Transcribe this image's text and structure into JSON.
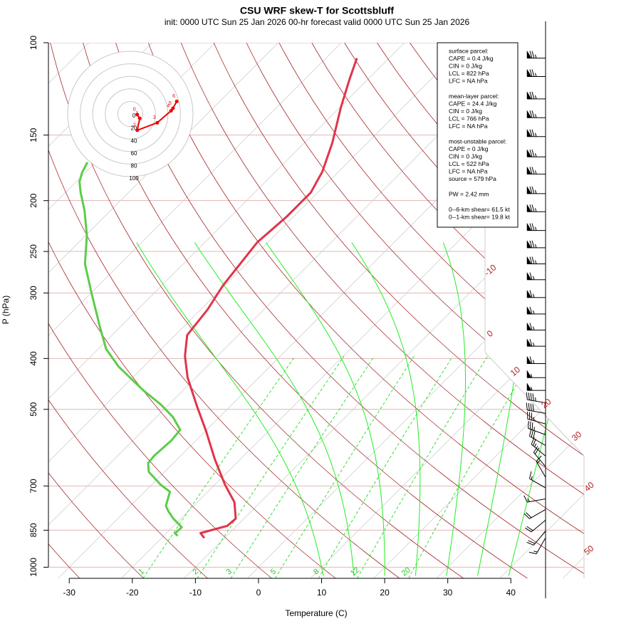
{
  "chart_data": {
    "type": "skewt",
    "title": "CSU WRF skew-T for Scottsbluff",
    "subtitle": "init: 0000 UTC Sun 25 Jan 2026    00-hr forecast valid 0000 UTC Sun 25 Jan 2026",
    "x_label": "Temperature (C)",
    "y_label": "P (hPa)",
    "xlim": [
      -33.3,
      51.6
    ],
    "xticks": [
      -30,
      -20,
      -10,
      0,
      10,
      20,
      30,
      40
    ],
    "ylim": [
      1050,
      100
    ],
    "yticks": [
      100,
      150,
      200,
      250,
      300,
      400,
      500,
      700,
      850,
      1000
    ],
    "ylog": true,
    "isotherms": [
      -110,
      -100,
      -90,
      -80,
      -70,
      -60,
      -50,
      -40,
      -30,
      -20,
      -10,
      0,
      10,
      20,
      30,
      40,
      50
    ],
    "isotherm_labels": [
      -10,
      0,
      10,
      20,
      30,
      40,
      50
    ],
    "dry_adiabats": [
      -40,
      -30,
      -20,
      -10,
      0,
      10,
      20,
      30,
      40,
      50,
      60,
      70,
      80,
      90,
      100,
      110,
      120,
      130,
      140,
      150,
      160,
      170,
      180,
      190
    ],
    "moist_adiabats": [
      10,
      15,
      20,
      25,
      30,
      35,
      40
    ],
    "mixing_ratios": [
      1,
      2,
      3,
      5,
      8,
      12,
      20
    ],
    "series": [
      {
        "color": "#e0344a",
        "pressure": [
          880,
          861,
          834,
          808,
          752,
          696,
          623,
          550,
          493,
          435,
          396,
          361,
          323,
          290,
          260,
          240,
          215,
          193,
          176,
          155,
          133,
          117,
          107
        ],
        "values": [
          -13.2,
          -14.6,
          -11.5,
          -11.3,
          -14.1,
          -18.4,
          -24.0,
          -29.9,
          -35.3,
          -41.3,
          -45.1,
          -48.1,
          -48.9,
          -50.3,
          -51.1,
          -51.7,
          -51.1,
          -51.1,
          -52.6,
          -55.6,
          -59.8,
          -63.0,
          -65.1
        ]
      },
      {
        "color": "#5ccc4a",
        "pressure": [
          871,
          862,
          839,
          808,
          783,
          764,
          718,
          696,
          658,
          633,
          614,
          573,
          547,
          517,
          490,
          460,
          415,
          384,
          350,
          299,
          264,
          233,
          209,
          193,
          184,
          177,
          169
        ],
        "values": [
          -17.8,
          -18.6,
          -18.5,
          -21.2,
          -23.1,
          -24.4,
          -26.0,
          -28.6,
          -32.5,
          -34.0,
          -34.2,
          -33.9,
          -34.2,
          -37.4,
          -41.2,
          -46.3,
          -53.9,
          -58.7,
          -63.0,
          -70.1,
          -75.6,
          -79.8,
          -84.1,
          -87.6,
          -89.5,
          -90.5,
          -91.3
        ]
      }
    ],
    "hodograph": {
      "rings": [
        0,
        20,
        40,
        60,
        80,
        100
      ],
      "heights": [
        0,
        1,
        2,
        3,
        4,
        5,
        6
      ],
      "u": [
        11,
        15,
        11,
        43,
        65,
        68,
        74
      ],
      "v": [
        -1,
        -7,
        -26,
        -14,
        5,
        9,
        20
      ]
    },
    "wind_barbs": {
      "pressure": [
        107,
        116,
        128,
        139,
        151,
        165,
        178,
        194,
        210,
        228,
        246,
        264,
        283,
        306,
        329,
        353,
        379,
        409,
        435,
        460,
        486,
        509,
        533,
        559,
        586,
        614,
        643,
        674,
        706,
        741,
        776,
        813,
        853,
        879
      ],
      "speed": [
        75,
        75,
        75,
        75,
        75,
        75,
        75,
        75,
        75,
        75,
        75,
        75,
        65,
        65,
        65,
        65,
        65,
        65,
        55,
        55,
        45,
        40,
        35,
        35,
        30,
        25,
        20,
        15,
        15,
        15,
        20,
        20,
        20,
        15
      ],
      "direction": [
        270,
        270,
        270,
        270,
        270,
        270,
        270,
        270,
        270,
        270,
        270,
        270,
        270,
        270,
        270,
        270,
        270,
        270,
        270,
        270,
        280,
        280,
        285,
        290,
        300,
        310,
        320,
        330,
        300,
        260,
        240,
        230,
        220,
        210
      ]
    },
    "info": [
      [
        "surface parcel:",
        "CAPE = 0.4 J/kg",
        "CIN = 0 J/kg",
        "LCL = 822 hPa",
        "LFC = NA hPa"
      ],
      [
        "mean-layer parcel:",
        "CAPE = 24.4 J/kg",
        "CIN = 0 J/kg",
        "LCL = 766 hPa",
        "LFC = NA hPa"
      ],
      [
        "most-unstable parcel:",
        "CAPE = 0 J/kg",
        "CIN = 0 J/kg",
        "LCL = 522 hPa",
        "LFC = NA hPa",
        "source = 579 hPa"
      ],
      [
        "PW =  2.42 mm"
      ],
      [
        "0--6-km shear= 61.5 kt",
        "0--1-km shear= 19.8 kt"
      ]
    ]
  }
}
